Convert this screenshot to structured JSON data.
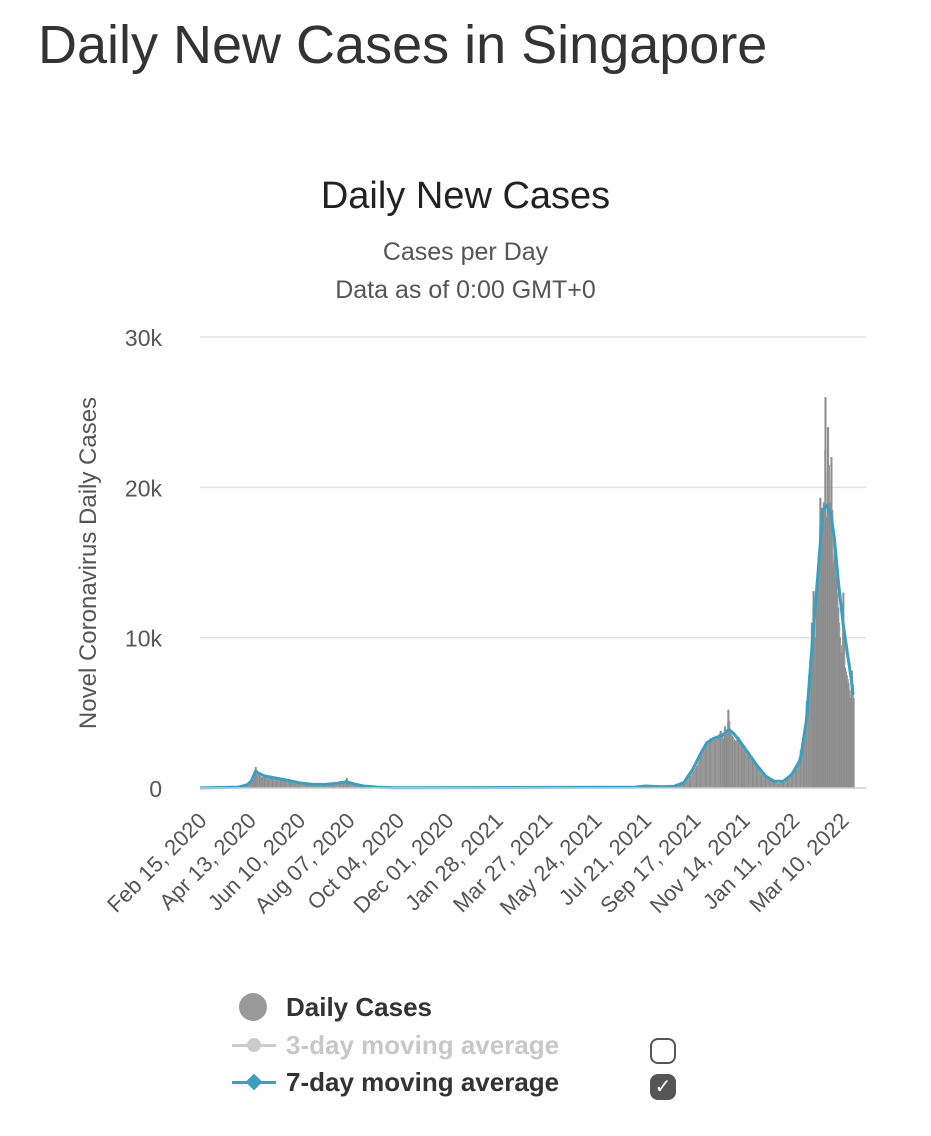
{
  "page": {
    "title": "Daily New Cases in Singapore"
  },
  "chart_data": {
    "type": "bar",
    "title": "Daily New Cases",
    "subtitle": "Cases per Day",
    "subtitle2": "Data as of 0:00 GMT+0",
    "ylabel": "Novel Coronavirus Daily Cases",
    "xlabel": "",
    "ylim": [
      0,
      30000
    ],
    "yticks": [
      0,
      10000,
      20000,
      30000
    ],
    "ytick_labels": [
      "0",
      "10k",
      "20k",
      "30k"
    ],
    "grid": true,
    "x_start": "2020-02-15",
    "x_end": "2022-04-07",
    "xtick_dates": [
      "2020-02-15",
      "2020-04-13",
      "2020-06-10",
      "2020-08-07",
      "2020-10-04",
      "2020-12-01",
      "2021-01-28",
      "2021-03-27",
      "2021-05-24",
      "2021-07-21",
      "2021-09-17",
      "2021-11-14",
      "2022-01-11",
      "2022-03-10"
    ],
    "xtick_labels": [
      "Feb 15, 2020",
      "Apr 13, 2020",
      "Jun 10, 2020",
      "Aug 07, 2020",
      "Oct 04, 2020",
      "Dec 01, 2020",
      "Jan 28, 2021",
      "Mar 27, 2021",
      "May 24, 2021",
      "Jul 21, 2021",
      "Sep 17, 2021",
      "Nov 14, 2021",
      "Jan 11, 2022",
      "Mar 10, 2022"
    ],
    "series": [
      {
        "name": "Daily Cases",
        "color": "#999999",
        "points": [
          [
            "2020-02-15",
            5
          ],
          [
            "2020-03-15",
            20
          ],
          [
            "2020-03-31",
            50
          ],
          [
            "2020-04-05",
            120
          ],
          [
            "2020-04-10",
            250
          ],
          [
            "2020-04-15",
            400
          ],
          [
            "2020-04-18",
            900
          ],
          [
            "2020-04-20",
            1400
          ],
          [
            "2020-04-22",
            1000
          ],
          [
            "2020-04-25",
            800
          ],
          [
            "2020-04-28",
            700
          ],
          [
            "2020-05-01",
            900
          ],
          [
            "2020-05-05",
            600
          ],
          [
            "2020-05-10",
            750
          ],
          [
            "2020-05-15",
            700
          ],
          [
            "2020-05-20",
            550
          ],
          [
            "2020-05-25",
            500
          ],
          [
            "2020-05-31",
            450
          ],
          [
            "2020-06-05",
            400
          ],
          [
            "2020-06-10",
            300
          ],
          [
            "2020-06-20",
            250
          ],
          [
            "2020-07-01",
            200
          ],
          [
            "2020-07-10",
            250
          ],
          [
            "2020-07-20",
            300
          ],
          [
            "2020-07-28",
            450
          ],
          [
            "2020-08-01",
            350
          ],
          [
            "2020-08-05",
            650
          ],
          [
            "2020-08-07",
            300
          ],
          [
            "2020-08-15",
            200
          ],
          [
            "2020-08-25",
            120
          ],
          [
            "2020-09-05",
            60
          ],
          [
            "2020-09-20",
            30
          ],
          [
            "2020-10-10",
            10
          ],
          [
            "2021-01-28",
            20
          ],
          [
            "2021-04-20",
            20
          ],
          [
            "2021-05-24",
            30
          ],
          [
            "2021-06-15",
            20
          ],
          [
            "2021-07-10",
            80
          ],
          [
            "2021-07-20",
            150
          ],
          [
            "2021-07-25",
            100
          ],
          [
            "2021-08-10",
            60
          ],
          [
            "2021-08-25",
            100
          ],
          [
            "2021-09-05",
            300
          ],
          [
            "2021-09-12",
            800
          ],
          [
            "2021-09-20",
            1500
          ],
          [
            "2021-09-25",
            2300
          ],
          [
            "2021-10-01",
            2900
          ],
          [
            "2021-10-06",
            3300
          ],
          [
            "2021-10-12",
            3200
          ],
          [
            "2021-10-18",
            3800
          ],
          [
            "2021-10-21",
            3300
          ],
          [
            "2021-10-23",
            4100
          ],
          [
            "2021-10-25",
            3600
          ],
          [
            "2021-10-27",
            5200
          ],
          [
            "2021-10-29",
            3700
          ],
          [
            "2021-11-01",
            3400
          ],
          [
            "2021-11-04",
            3100
          ],
          [
            "2021-11-08",
            3400
          ],
          [
            "2021-11-12",
            2800
          ],
          [
            "2021-11-15",
            2500
          ],
          [
            "2021-11-20",
            2200
          ],
          [
            "2021-11-25",
            1800
          ],
          [
            "2021-11-30",
            1300
          ],
          [
            "2021-12-05",
            900
          ],
          [
            "2021-12-10",
            700
          ],
          [
            "2021-12-15",
            500
          ],
          [
            "2021-12-20",
            400
          ],
          [
            "2021-12-25",
            300
          ],
          [
            "2021-12-31",
            500
          ],
          [
            "2022-01-05",
            800
          ],
          [
            "2022-01-10",
            1100
          ],
          [
            "2022-01-15",
            1500
          ],
          [
            "2022-01-20",
            2500
          ],
          [
            "2022-01-24",
            3500
          ],
          [
            "2022-01-27",
            5800
          ],
          [
            "2022-01-30",
            7500
          ],
          [
            "2022-02-02",
            11000
          ],
          [
            "2022-02-04",
            13100
          ],
          [
            "2022-02-06",
            10000
          ],
          [
            "2022-02-08",
            12800
          ],
          [
            "2022-02-10",
            15500
          ],
          [
            "2022-02-12",
            19300
          ],
          [
            "2022-02-14",
            18000
          ],
          [
            "2022-02-16",
            19000
          ],
          [
            "2022-02-18",
            26000
          ],
          [
            "2022-02-19",
            18000
          ],
          [
            "2022-02-21",
            24000
          ],
          [
            "2022-02-23",
            19000
          ],
          [
            "2022-02-25",
            22000
          ],
          [
            "2022-02-27",
            15000
          ],
          [
            "2022-03-01",
            16000
          ],
          [
            "2022-03-03",
            14000
          ],
          [
            "2022-03-05",
            12000
          ],
          [
            "2022-03-07",
            10000
          ],
          [
            "2022-03-09",
            9000
          ],
          [
            "2022-03-11",
            13000
          ],
          [
            "2022-03-13",
            8000
          ],
          [
            "2022-03-15",
            7500
          ],
          [
            "2022-03-17",
            7000
          ],
          [
            "2022-03-19",
            6000
          ],
          [
            "2022-03-21",
            7800
          ],
          [
            "2022-03-23",
            6000
          ]
        ]
      },
      {
        "name": "3-day moving average",
        "color": "#cccccc",
        "visible": false
      },
      {
        "name": "7-day moving average",
        "color": "#3aa0c0",
        "points": [
          [
            "2020-02-15",
            5
          ],
          [
            "2020-03-31",
            60
          ],
          [
            "2020-04-10",
            200
          ],
          [
            "2020-04-15",
            450
          ],
          [
            "2020-04-20",
            1100
          ],
          [
            "2020-04-25",
            950
          ],
          [
            "2020-05-01",
            800
          ],
          [
            "2020-05-10",
            700
          ],
          [
            "2020-05-20",
            600
          ],
          [
            "2020-05-31",
            480
          ],
          [
            "2020-06-10",
            350
          ],
          [
            "2020-06-25",
            250
          ],
          [
            "2020-07-10",
            230
          ],
          [
            "2020-07-25",
            320
          ],
          [
            "2020-08-05",
            420
          ],
          [
            "2020-08-15",
            250
          ],
          [
            "2020-08-25",
            130
          ],
          [
            "2020-09-10",
            60
          ],
          [
            "2020-10-01",
            15
          ],
          [
            "2021-07-10",
            60
          ],
          [
            "2021-07-22",
            130
          ],
          [
            "2021-08-10",
            80
          ],
          [
            "2021-08-25",
            120
          ],
          [
            "2021-09-05",
            350
          ],
          [
            "2021-09-15",
            1200
          ],
          [
            "2021-09-25",
            2300
          ],
          [
            "2021-10-02",
            3000
          ],
          [
            "2021-10-10",
            3300
          ],
          [
            "2021-10-20",
            3500
          ],
          [
            "2021-10-28",
            3900
          ],
          [
            "2021-11-03",
            3600
          ],
          [
            "2021-11-10",
            3100
          ],
          [
            "2021-11-20",
            2300
          ],
          [
            "2021-11-30",
            1500
          ],
          [
            "2021-12-10",
            800
          ],
          [
            "2021-12-20",
            450
          ],
          [
            "2021-12-31",
            450
          ],
          [
            "2022-01-10",
            900
          ],
          [
            "2022-01-20",
            1900
          ],
          [
            "2022-01-27",
            4500
          ],
          [
            "2022-02-02",
            9000
          ],
          [
            "2022-02-07",
            12500
          ],
          [
            "2022-02-12",
            16000
          ],
          [
            "2022-02-15",
            18500
          ],
          [
            "2022-02-20",
            18800
          ],
          [
            "2022-02-25",
            18200
          ],
          [
            "2022-03-01",
            16500
          ],
          [
            "2022-03-06",
            13500
          ],
          [
            "2022-03-11",
            11000
          ],
          [
            "2022-03-16",
            9000
          ],
          [
            "2022-03-20",
            7500
          ],
          [
            "2022-03-23",
            6200
          ]
        ]
      }
    ],
    "legend": [
      "Daily Cases",
      "3-day moving average",
      "7-day moving average"
    ],
    "legend_position": "bottom",
    "checkboxes": {
      "three_day": false,
      "seven_day": true
    }
  }
}
